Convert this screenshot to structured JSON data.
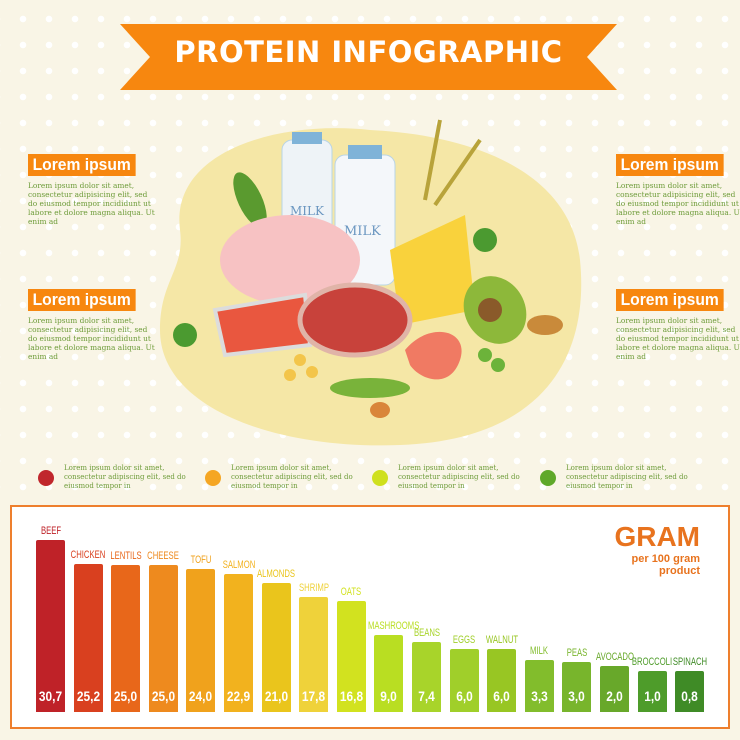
{
  "title": "PROTEIN INFOGRAPHIC",
  "sections": [
    {
      "heading": "Lorem ipsum",
      "text": "Lorem ipsum dolor sit amet, consectetur adipisicing elit, sed do eiusmod tempor incididunt ut labore et dolore magna aliqua. Ut enim ad"
    },
    {
      "heading": "Lorem ipsum",
      "text": "Lorem ipsum dolor sit amet, consectetur adipisicing elit, sed do eiusmod tempor incididunt ut labore et dolore magna aliqua. Ut enim ad"
    },
    {
      "heading": "Lorem ipsum",
      "text": "Lorem ipsum dolor sit amet, consectetur adipisicing elit, sed do eiusmod tempor incididunt ut labore et dolore magna aliqua. Ut enim ad"
    },
    {
      "heading": "Lorem ipsum",
      "text": "Lorem ipsum dolor sit amet, consectetur adipisicing elit, sed do eiusmod tempor incididunt ut labore et dolore magna aliqua. Ut enim ad"
    }
  ],
  "illustration_labels": {
    "milk1": "MILK",
    "milk2": "MILK"
  },
  "legend": [
    {
      "color": "#c0272d",
      "text": "Lorem ipsum dolor sit amet, consectetur adipiscing elit, sed do eiusmod tempor in"
    },
    {
      "color": "#f5a623",
      "text": "Lorem ipsum dolor sit amet, consectetur adipiscing elit, sed do eiusmod tempor in"
    },
    {
      "color": "#cfe01f",
      "text": "Lorem ipsum dolor sit amet, consectetur adipiscing elit, sed do eiusmod tempor in"
    },
    {
      "color": "#5fa82a",
      "text": "Lorem ipsum dolor sit amet, consectetur adipiscing elit, sed do eiusmod tempor in"
    }
  ],
  "chart_data": {
    "type": "bar",
    "title": "GRAM",
    "subtitle": "per 100 gram product",
    "categories": [
      "BEEF",
      "CHICKEN",
      "LENTILS",
      "CHEESE",
      "TOFU",
      "SALMON",
      "ALMONDS",
      "SHRIMP",
      "OATS",
      "MASHROOMS",
      "BEANS",
      "EGGS",
      "WALNUT",
      "MILK",
      "PEAS",
      "AVOCADO",
      "BROCCOLI",
      "SPINACH"
    ],
    "values": [
      30.7,
      25.2,
      25.0,
      25.0,
      24.0,
      22.9,
      21.0,
      17.8,
      16.8,
      9.0,
      7.4,
      6.0,
      6.0,
      3.3,
      3.0,
      2.0,
      1.0,
      0.8
    ],
    "value_labels": [
      "30,7",
      "25,2",
      "25,0",
      "25,0",
      "24,0",
      "22,9",
      "21,0",
      "17,8",
      "16,8",
      "9,0",
      "7,4",
      "6,0",
      "6,0",
      "3,3",
      "3,0",
      "2,0",
      "1,0",
      "0,8"
    ],
    "colors": [
      "#bf2228",
      "#d9401f",
      "#e8671a",
      "#ee8a1e",
      "#f0a21c",
      "#f2b21e",
      "#eac51c",
      "#efd23a",
      "#d2e21f",
      "#b9de22",
      "#a8d42a",
      "#a0cf2a",
      "#98c623",
      "#82bd2c",
      "#78b52c",
      "#68a82a",
      "#4e9c2a",
      "#3f8b26"
    ],
    "grid": false,
    "legend": "none"
  }
}
